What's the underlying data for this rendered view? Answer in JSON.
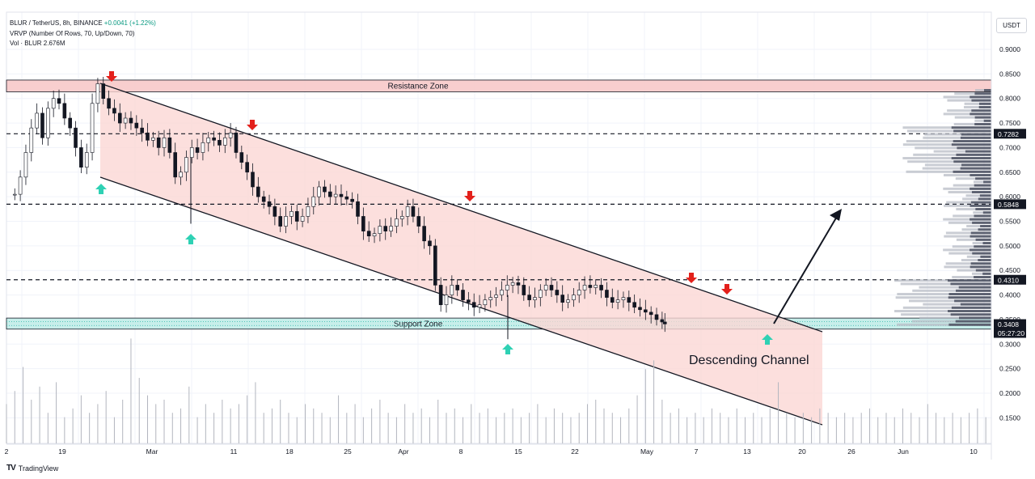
{
  "header": {
    "symbol": "BLUR / TetherUS, 8h, BINANCE",
    "change": "+0.0041 (+1.22%)",
    "vrvp": "VRVP (Number Of Rows, 70, Up/Down, 70)",
    "volume": "Vol · BLUR  2.676M"
  },
  "currency_button": "USDT",
  "watermark": "TradingView",
  "chart_data": {
    "type": "candlestick",
    "price_axis": {
      "ticks": [
        "0.9000",
        "0.8500",
        "0.8000",
        "0.7500",
        "0.7000",
        "0.6500",
        "0.6000",
        "0.5500",
        "0.5000",
        "0.4500",
        "0.4000",
        "0.3500",
        "0.3000",
        "0.2500",
        "0.2000",
        "0.1500"
      ],
      "range": [
        0.11,
        0.96
      ]
    },
    "time_axis": {
      "labels": [
        "2",
        "19",
        "Mar",
        "11",
        "18",
        "25",
        "Apr",
        "8",
        "15",
        "22",
        "May",
        "7",
        "13",
        "20",
        "26",
        "Jun",
        "10"
      ]
    },
    "price_labels": [
      {
        "text": "0.7282",
        "value": 0.7282,
        "style": "dark"
      },
      {
        "text": "0.5848",
        "value": 0.5848,
        "style": "dark"
      },
      {
        "text": "0.4310",
        "value": 0.431,
        "style": "dark"
      },
      {
        "text": "0.3408",
        "value": 0.3408,
        "style": "dark"
      },
      {
        "text": "05:27:20",
        "value": 0.325,
        "style": "dark"
      }
    ],
    "horizontal_levels": [
      0.7282,
      0.5848,
      0.431
    ],
    "zones": [
      {
        "label": "Resistance Zone",
        "top": 0.8375,
        "bottom": 0.8135,
        "color": "#f7c6c6"
      },
      {
        "label": "Support Zone",
        "top": 0.353,
        "bottom": 0.3305,
        "color": "#bdebe6"
      }
    ],
    "annotations": [
      "Descending Channel"
    ],
    "price_path": [
      [
        1.5,
        0.605
      ],
      [
        2.5,
        0.64
      ],
      [
        3.5,
        0.69
      ],
      [
        4.5,
        0.74
      ],
      [
        5.5,
        0.77
      ],
      [
        6.5,
        0.72
      ],
      [
        7.5,
        0.78
      ],
      [
        8.5,
        0.8
      ],
      [
        9.5,
        0.79
      ],
      [
        10.5,
        0.76
      ],
      [
        11.5,
        0.74
      ],
      [
        12.5,
        0.7
      ],
      [
        13.5,
        0.66
      ],
      [
        14.5,
        0.69
      ],
      [
        15.5,
        0.79
      ],
      [
        16.5,
        0.83
      ],
      [
        17.5,
        0.8
      ],
      [
        18.5,
        0.78
      ],
      [
        19.5,
        0.77
      ],
      [
        20.5,
        0.75
      ],
      [
        21.5,
        0.76
      ],
      [
        22.5,
        0.75
      ],
      [
        23.5,
        0.74
      ],
      [
        24.5,
        0.73
      ],
      [
        25.5,
        0.715
      ],
      [
        26.5,
        0.72
      ],
      [
        27.5,
        0.7
      ],
      [
        28.5,
        0.72
      ],
      [
        29.5,
        0.69
      ],
      [
        30.5,
        0.64
      ],
      [
        31.5,
        0.65
      ],
      [
        32.5,
        0.68
      ],
      [
        33.5,
        0.7
      ],
      [
        34.5,
        0.69
      ],
      [
        35.5,
        0.71
      ],
      [
        36.5,
        0.72
      ],
      [
        37.5,
        0.715
      ],
      [
        38.5,
        0.705
      ],
      [
        39.5,
        0.72
      ],
      [
        40.5,
        0.73
      ],
      [
        41.5,
        0.69
      ],
      [
        42.5,
        0.67
      ],
      [
        43.5,
        0.65
      ],
      [
        44.5,
        0.62
      ],
      [
        45.5,
        0.6
      ],
      [
        46.5,
        0.59
      ],
      [
        47.5,
        0.58
      ],
      [
        48.5,
        0.56
      ],
      [
        49.5,
        0.54
      ],
      [
        50.5,
        0.56
      ],
      [
        51.5,
        0.57
      ],
      [
        52.5,
        0.55
      ],
      [
        53.5,
        0.56
      ],
      [
        54.5,
        0.58
      ],
      [
        55.5,
        0.6
      ],
      [
        56.5,
        0.62
      ],
      [
        57.5,
        0.61
      ],
      [
        58.5,
        0.6
      ],
      [
        59.5,
        0.605
      ],
      [
        60.5,
        0.6
      ],
      [
        61.5,
        0.595
      ],
      [
        62.5,
        0.59
      ],
      [
        63.5,
        0.56
      ],
      [
        64.5,
        0.53
      ],
      [
        65.5,
        0.52
      ],
      [
        66.5,
        0.525
      ],
      [
        67.5,
        0.54
      ],
      [
        68.5,
        0.53
      ],
      [
        69.5,
        0.54
      ],
      [
        70.5,
        0.555
      ],
      [
        71.5,
        0.56
      ],
      [
        72.5,
        0.58
      ],
      [
        73.5,
        0.56
      ],
      [
        74.5,
        0.54
      ],
      [
        75.5,
        0.51
      ],
      [
        76.5,
        0.5
      ],
      [
        77.5,
        0.42
      ],
      [
        78.5,
        0.38
      ],
      [
        79.5,
        0.4
      ],
      [
        80.5,
        0.42
      ],
      [
        81.5,
        0.41
      ],
      [
        82.5,
        0.39
      ],
      [
        83.5,
        0.385
      ],
      [
        84.5,
        0.375
      ],
      [
        85.5,
        0.38
      ],
      [
        86.5,
        0.39
      ],
      [
        87.5,
        0.395
      ],
      [
        88.5,
        0.4
      ],
      [
        89.5,
        0.41
      ],
      [
        90.5,
        0.42
      ],
      [
        91.5,
        0.425
      ],
      [
        92.5,
        0.42
      ],
      [
        93.5,
        0.4
      ],
      [
        94.5,
        0.39
      ],
      [
        95.5,
        0.395
      ],
      [
        96.5,
        0.41
      ],
      [
        97.5,
        0.42
      ],
      [
        98.5,
        0.41
      ],
      [
        99.5,
        0.4
      ],
      [
        100.5,
        0.385
      ],
      [
        101.5,
        0.39
      ],
      [
        102.5,
        0.4
      ],
      [
        103.5,
        0.41
      ],
      [
        104.5,
        0.42
      ],
      [
        105.5,
        0.415
      ],
      [
        106.5,
        0.42
      ],
      [
        107.5,
        0.41
      ],
      [
        108.5,
        0.395
      ],
      [
        109.5,
        0.385
      ],
      [
        110.5,
        0.39
      ],
      [
        111.5,
        0.395
      ],
      [
        112.5,
        0.385
      ],
      [
        113.5,
        0.375
      ],
      [
        114.5,
        0.37
      ],
      [
        115.5,
        0.365
      ],
      [
        116.5,
        0.36
      ],
      [
        117.5,
        0.35
      ],
      [
        118.5,
        0.345
      ],
      [
        119.0,
        0.341
      ]
    ],
    "volume_path": [
      18,
      24,
      35,
      20,
      26,
      14,
      28,
      12,
      16,
      22,
      14,
      18,
      24,
      12,
      20,
      48,
      30,
      22,
      18,
      20,
      14,
      16,
      26,
      12,
      18,
      14,
      20,
      16,
      18,
      22,
      28,
      14,
      16,
      20,
      14,
      12,
      18,
      16,
      14,
      12,
      22,
      14,
      18,
      12,
      16,
      20,
      14,
      12,
      18,
      14,
      16,
      12,
      20,
      14,
      16,
      12,
      18,
      14,
      16,
      12,
      14,
      16,
      12,
      14,
      18,
      12,
      16,
      14,
      12,
      14,
      18,
      20,
      16,
      14,
      12,
      16,
      22,
      34,
      38,
      20,
      14,
      16,
      12,
      14,
      12,
      16,
      14,
      12,
      16,
      12,
      14,
      12,
      16,
      28,
      14,
      12,
      14,
      12,
      16,
      14,
      12,
      14,
      12,
      14,
      16,
      12,
      14,
      12,
      16,
      14,
      12,
      18,
      14,
      12,
      14,
      12,
      14,
      16,
      12
    ]
  }
}
